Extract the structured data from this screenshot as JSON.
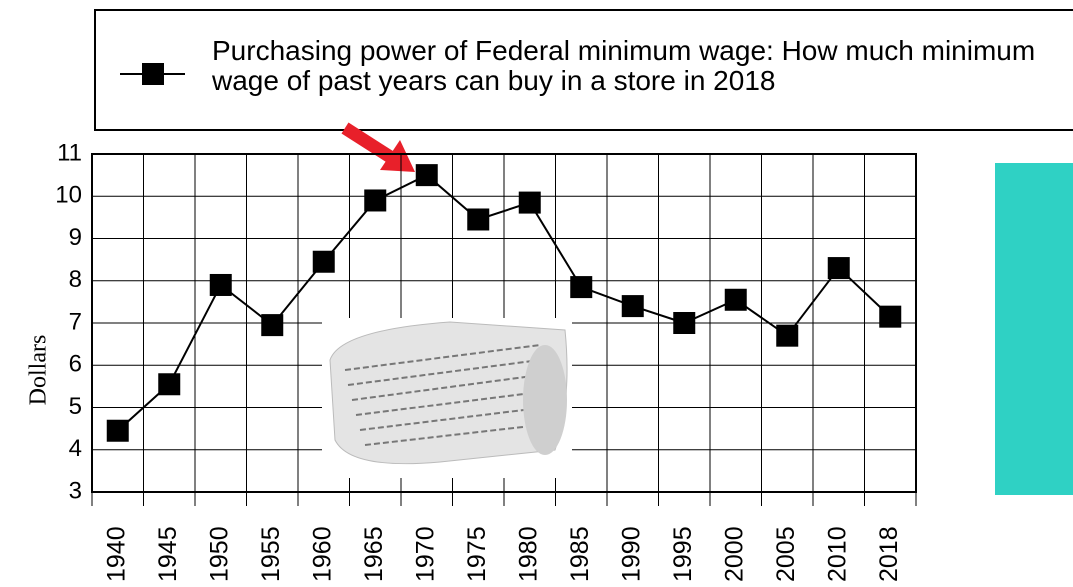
{
  "chart_data": {
    "type": "line",
    "categories": [
      "1940",
      "1945",
      "1950",
      "1955",
      "1960",
      "1965",
      "1970",
      "1975",
      "1980",
      "1985",
      "1990",
      "1995",
      "2000",
      "2005",
      "2010",
      "2018"
    ],
    "series": [
      {
        "name": "Purchasing power of Federal minimum wage: How much minimum wage of past years can buy in a store in 2018",
        "color": "#000000",
        "values": [
          4.45,
          5.55,
          7.9,
          6.95,
          8.45,
          9.9,
          10.5,
          9.45,
          9.85,
          7.85,
          7.4,
          7.0,
          7.55,
          6.7,
          8.3,
          7.15
        ]
      }
    ],
    "y_label": "Dollars",
    "ylim": [
      3,
      11
    ],
    "yticks": [
      3,
      4,
      5,
      6,
      7,
      8,
      9,
      10,
      11
    ],
    "grid": true
  }
}
